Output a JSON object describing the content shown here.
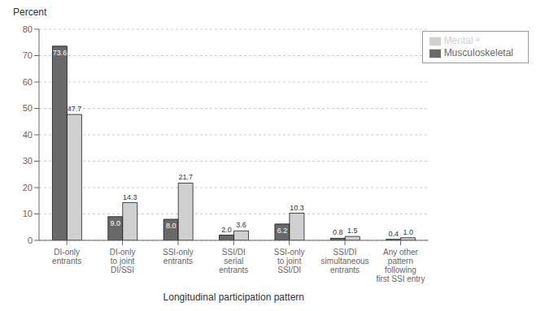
{
  "chart_data": {
    "type": "bar",
    "y_label": "Percent",
    "x_label": "Longitudinal participation pattern",
    "categories": [
      "DI-only\nentrants",
      "DI-only\nto joint\nDI/SSI",
      "SSI-only\nentrants",
      "SSI/DI\nserial\nentrants",
      "SSI-only\nto joint\nSSI/DI",
      "SSI/DI\nsimultaneous\nentrants",
      "Any other\npattern\nfollowing\nfirst SSI entry"
    ],
    "series": [
      {
        "name": "Musculoskeletal",
        "color": "#696969",
        "values": [
          73.6,
          9.0,
          8.0,
          2.0,
          6.2,
          0.8,
          0.4
        ],
        "value_labels": [
          "73.6",
          "9.0",
          "8.0",
          "2.0",
          "6.2",
          "0.8",
          "0.4"
        ]
      },
      {
        "name": "Mental ᵃ",
        "color": "#d0d0d0",
        "values": [
          47.7,
          14.3,
          21.7,
          3.6,
          10.3,
          1.5,
          1.0
        ],
        "value_labels": [
          "47.7",
          "14.3",
          "21.7",
          "3.6",
          "10.3",
          "1.5",
          "1.0"
        ]
      }
    ],
    "ylim": [
      0,
      80
    ],
    "yticks": [
      0,
      10,
      20,
      30,
      40,
      50,
      60,
      70,
      80
    ],
    "grid": true,
    "legend": "upper right",
    "data_labels": true
  }
}
